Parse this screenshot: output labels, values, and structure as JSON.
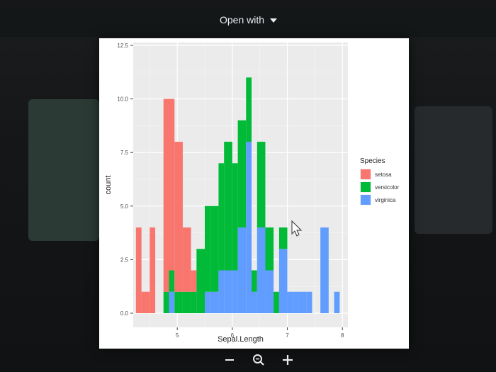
{
  "toolbar": {
    "open_with_label": "Open with"
  },
  "chart_data": {
    "type": "bar",
    "subtype": "stacked-histogram",
    "title": "",
    "xlabel": "Sepal.Length",
    "ylabel": "count",
    "xlim": [
      4.2,
      8.1
    ],
    "ylim": [
      0,
      12.5
    ],
    "x_ticks": [
      5,
      6,
      7,
      8
    ],
    "x_tick_labels": [
      "5",
      "6",
      "7",
      "8"
    ],
    "y_ticks": [
      0,
      2.5,
      5,
      7.5,
      10,
      12.5
    ],
    "y_tick_labels": [
      "0.0",
      "2.5",
      "5.0",
      "7.5",
      "10.0",
      "12.5"
    ],
    "grid": true,
    "legend_title": "Species",
    "legend_position": "right",
    "bins": [
      [
        4.25,
        4.35
      ],
      [
        4.35,
        4.5
      ],
      [
        4.5,
        4.6
      ],
      [
        4.6,
        4.75
      ],
      [
        4.75,
        4.85
      ],
      [
        4.85,
        4.95
      ],
      [
        4.95,
        5.1
      ],
      [
        5.1,
        5.25
      ],
      [
        5.25,
        5.35
      ],
      [
        5.35,
        5.5
      ],
      [
        5.5,
        5.6
      ],
      [
        5.6,
        5.75
      ],
      [
        5.75,
        5.85
      ],
      [
        5.85,
        6.0
      ],
      [
        6.0,
        6.1
      ],
      [
        6.1,
        6.25
      ],
      [
        6.25,
        6.35
      ],
      [
        6.35,
        6.45
      ],
      [
        6.45,
        6.6
      ],
      [
        6.6,
        6.75
      ],
      [
        6.75,
        6.85
      ],
      [
        6.85,
        7.0
      ],
      [
        7.0,
        7.1
      ],
      [
        7.1,
        7.2
      ],
      [
        7.2,
        7.35
      ],
      [
        7.35,
        7.45
      ],
      [
        7.45,
        7.6
      ],
      [
        7.6,
        7.75
      ],
      [
        7.75,
        7.85
      ],
      [
        7.85,
        7.95
      ]
    ],
    "series": [
      {
        "name": "setosa",
        "color": "#f8766d",
        "values": [
          4,
          1,
          4,
          0,
          9,
          8,
          7,
          3,
          1,
          0,
          0,
          0,
          0,
          0,
          0,
          0,
          0,
          0,
          0,
          0,
          0,
          0,
          0,
          0,
          0,
          0,
          0,
          0,
          0,
          0
        ]
      },
      {
        "name": "versicolor",
        "color": "#00ba38",
        "values": [
          0,
          0,
          0,
          0,
          1,
          1,
          1,
          1,
          1,
          3,
          4,
          4,
          5,
          6,
          5,
          5,
          3,
          1,
          4,
          2,
          1,
          1,
          0,
          0,
          0,
          0,
          0,
          0,
          0,
          0
        ]
      },
      {
        "name": "virginica",
        "color": "#619cff",
        "values": [
          0,
          0,
          0,
          0,
          0,
          1,
          0,
          0,
          0,
          0,
          1,
          1,
          2,
          2,
          2,
          4,
          8,
          1,
          4,
          2,
          0,
          3,
          1,
          1,
          1,
          1,
          0,
          4,
          0,
          1
        ]
      }
    ]
  }
}
